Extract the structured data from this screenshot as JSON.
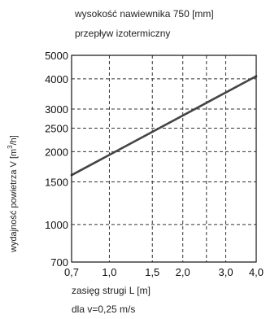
{
  "chart_data": {
    "type": "line",
    "annotations": {
      "top_line1": "wysokość nawiewnika 750 [mm]",
      "top_line2": "przepływ izotermiczny",
      "bottom_line2": "dla v=0,25 m/s"
    },
    "xlabel": "zasięg strugi L [m]",
    "ylabel_prefix": "wydajność powietrza V [m",
    "ylabel_sup": "3",
    "ylabel_suffix": "/h]",
    "x_scale": "log",
    "y_scale": "log",
    "xlim": [
      0.7,
      4.0
    ],
    "ylim": [
      700,
      5000
    ],
    "grid": true,
    "x_ticks": [
      {
        "value": 0.7,
        "label": "0,7"
      },
      {
        "value": 1.0,
        "label": "1,0"
      },
      {
        "value": 1.5,
        "label": "1,5"
      },
      {
        "value": 2.0,
        "label": "2,0"
      },
      {
        "value": 3.0,
        "label": "3,0"
      },
      {
        "value": 4.0,
        "label": "4,0"
      }
    ],
    "x_minor_grid": [
      2.5
    ],
    "y_ticks": [
      {
        "value": 700,
        "label": "700"
      },
      {
        "value": 1000,
        "label": "1000"
      },
      {
        "value": 1500,
        "label": "1500"
      },
      {
        "value": 2000,
        "label": "2000"
      },
      {
        "value": 2500,
        "label": "2500"
      },
      {
        "value": 3000,
        "label": "3000"
      },
      {
        "value": 4000,
        "label": "4000"
      },
      {
        "value": 5000,
        "label": "5000"
      }
    ],
    "series": [
      {
        "x": [
          0.7,
          4.0
        ],
        "y": [
          1600,
          4100
        ]
      }
    ],
    "colors": {
      "line": "#444444",
      "grid": "#333333",
      "frame": "#111111"
    }
  }
}
